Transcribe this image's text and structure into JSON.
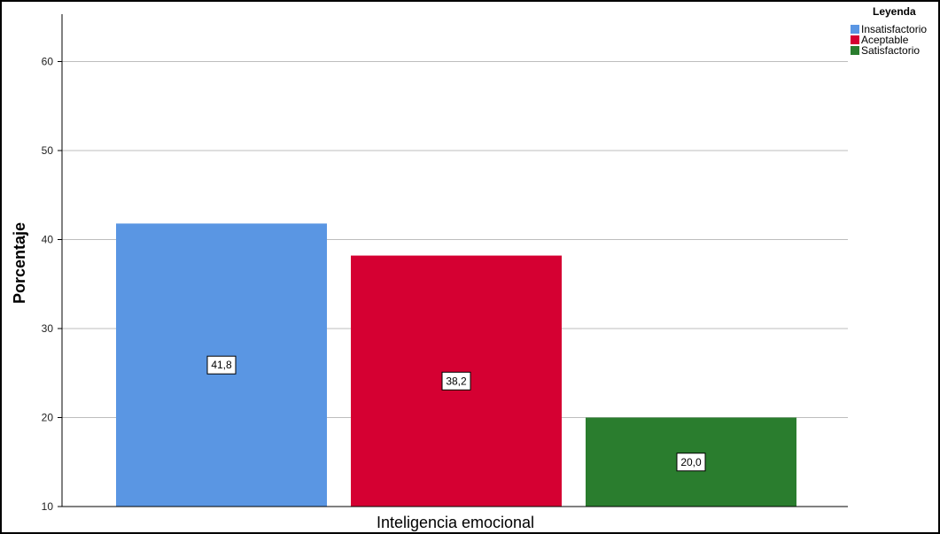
{
  "chart_data": {
    "type": "bar",
    "categories": [
      "Insatisfactorio",
      "Aceptable",
      "Satisfactorio"
    ],
    "values": [
      41.8,
      38.2,
      20.0
    ],
    "data_labels": [
      "41,8",
      "38,2",
      "20,0"
    ],
    "colors": [
      "#5a96e3",
      "#d50032",
      "#2a7d2e"
    ],
    "xlabel": "Inteligencia emocional",
    "ylabel": "Porcentaje",
    "ylim": [
      10,
      65
    ],
    "yticks": [
      10,
      20,
      30,
      40,
      50,
      60
    ],
    "ytick_labels": [
      "10",
      "20",
      "30",
      "40",
      "50",
      "60"
    ],
    "grid": true,
    "legend": {
      "title": "Leyenda",
      "placement": "top-right",
      "entries": [
        "Insatisfactorio",
        "Aceptable",
        "Satisfactorio"
      ]
    }
  }
}
